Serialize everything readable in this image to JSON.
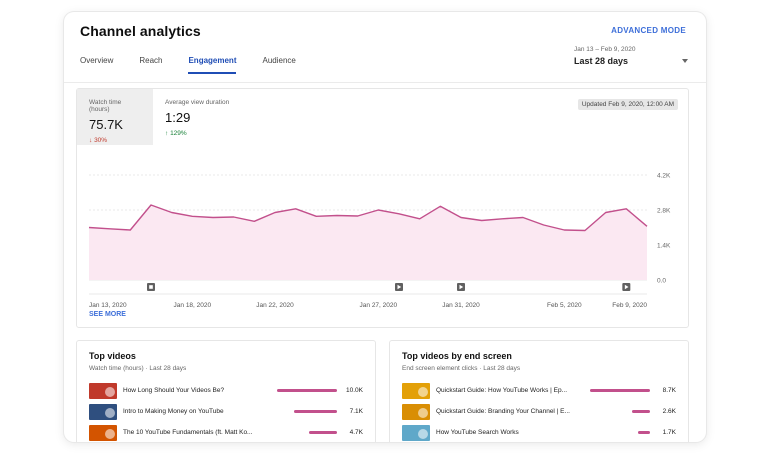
{
  "header": {
    "title": "Channel analytics",
    "advanced_mode": "ADVANCED MODE",
    "tabs": [
      {
        "label": "Overview",
        "active": false
      },
      {
        "label": "Reach",
        "active": false
      },
      {
        "label": "Engagement",
        "active": true
      },
      {
        "label": "Audience",
        "active": false
      }
    ],
    "date_range": {
      "range": "Jan 13 – Feb 9, 2020",
      "label": "Last 28 days"
    }
  },
  "metrics": [
    {
      "label": "Watch time (hours)",
      "value": "75.7K",
      "change": "30%",
      "direction": "down",
      "selected": true
    },
    {
      "label": "Average view duration",
      "value": "1:29",
      "change": "129%",
      "direction": "up",
      "selected": false
    }
  ],
  "updated": "Updated Feb 9, 2020, 12:00 AM",
  "see_more": "SEE MORE",
  "colors": {
    "accent": "#c2508c",
    "fill": "#fbe8f2",
    "link": "#3e6fd9",
    "active_tab": "#1f4db5"
  },
  "chart_data": {
    "type": "area",
    "series": [
      {
        "values": [
          2.1,
          2.05,
          2.0,
          3.0,
          2.7,
          2.55,
          2.5,
          2.52,
          2.35,
          2.7,
          2.85,
          2.55,
          2.58,
          2.56,
          2.8,
          2.65,
          2.45,
          2.95,
          2.5,
          2.38,
          2.45,
          2.5,
          2.2,
          2.0,
          1.98,
          2.7,
          2.85,
          2.15
        ]
      }
    ],
    "x_tick_labels": [
      "Jan 13, 2020",
      "Jan 18, 2020",
      "Jan 22, 2020",
      "Jan 27, 2020",
      "Jan 31, 2020",
      "Feb 5, 2020",
      "Feb 9, 2020"
    ],
    "x_tick_index": [
      0,
      5,
      9,
      14,
      18,
      23,
      27
    ],
    "y_ticks": [
      {
        "value": 0,
        "label": "0.0"
      },
      {
        "value": 1.4,
        "label": "1.4K"
      },
      {
        "value": 2.8,
        "label": "2.8K"
      },
      {
        "value": 4.2,
        "label": "4.2K"
      }
    ],
    "ylim": [
      0,
      4.2
    ],
    "markers": [
      {
        "index": 3,
        "icon": "square-icon"
      },
      {
        "index": 15,
        "icon": "play-icon"
      },
      {
        "index": 18,
        "icon": "play-icon"
      },
      {
        "index": 26,
        "icon": "play-icon"
      }
    ],
    "grid": true
  },
  "top_videos": {
    "title": "Top videos",
    "subtitle": "Watch time (hours) · Last 28 days",
    "rows": [
      {
        "title": "How Long Should Your Videos Be?",
        "value": "10.0K",
        "fraction": 1.0,
        "thumb": "#c0392b"
      },
      {
        "title": "Intro to Making Money on YouTube",
        "value": "7.1K",
        "fraction": 0.71,
        "thumb": "#2f4f7f"
      },
      {
        "title": "The 10 YouTube Fundamentals (ft. Matt Ko...",
        "value": "4.7K",
        "fraction": 0.47,
        "thumb": "#d35400"
      }
    ]
  },
  "top_end_screen": {
    "title": "Top videos by end screen",
    "subtitle": "End screen element clicks · Last 28 days",
    "rows": [
      {
        "title": "Quickstart Guide: How YouTube Works | Ep...",
        "value": "8.7K",
        "fraction": 1.0,
        "thumb": "#e3a008"
      },
      {
        "title": "Quickstart Guide: Branding Your Channel | E...",
        "value": "2.6K",
        "fraction": 0.3,
        "thumb": "#d98e04"
      },
      {
        "title": "How YouTube Search Works",
        "value": "1.7K",
        "fraction": 0.2,
        "thumb": "#5fa8c9"
      }
    ]
  }
}
